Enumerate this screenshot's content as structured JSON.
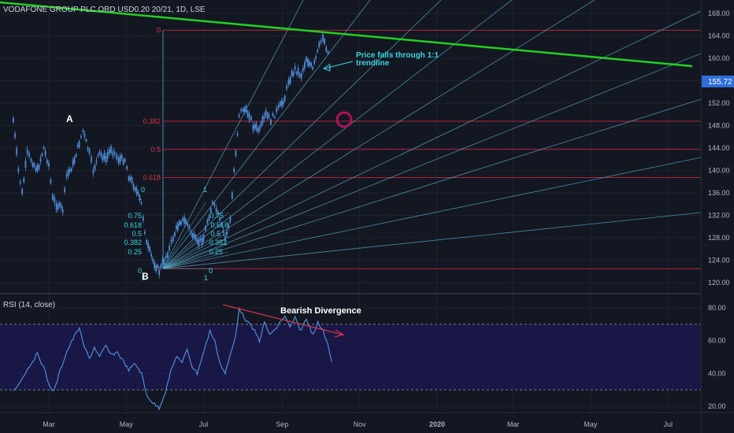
{
  "header": {
    "symbol": "VODAFONE GROUP PLC ORD USD0.20 20/21, 1D, LSE"
  },
  "colors": {
    "background": "#131722",
    "candle": "#4e8bd6",
    "green_trendline": "#22d022",
    "fib_lines": "#b2263c",
    "fib_label": "#d2354e",
    "gann_lines": "#5aa8c8",
    "gann_label": "#3ad4e0",
    "annotation": "#3ad4e0",
    "circle": "#b0125a",
    "rsi_line": "#4e8bd6",
    "rsi_band": "#1c1852",
    "divergence_arrow": "#d2354e",
    "price_badge": "#2f6ed8"
  },
  "annotations": {
    "point_a": "A",
    "point_b": "B",
    "trendline_note_1": "Price falls through 1:1",
    "trendline_note_2": "trendline",
    "divergence": "Bearish Divergence"
  },
  "price_axis": {
    "ticks": [
      "168.00",
      "164.00",
      "160.00",
      "156.00",
      "152.00",
      "148.00",
      "144.00",
      "140.00",
      "136.00",
      "132.00",
      "128.00",
      "124.00",
      "120.00"
    ],
    "current_price": "155.72"
  },
  "rsi_panel": {
    "title": "RSI (14, close)",
    "ticks": [
      "80.00",
      "60.00",
      "40.00",
      "20.00"
    ]
  },
  "time_axis": {
    "labels": [
      "Mar",
      "May",
      "Jul",
      "Sep",
      "Nov",
      "2020",
      "Mar",
      "May",
      "Jul"
    ]
  },
  "chart_data": {
    "type": "line",
    "title": "VODAFONE GROUP PLC ORD USD0.20 20/21, 1D, LSE",
    "price_range": [
      119,
      170
    ],
    "rsi_range": [
      15,
      88
    ],
    "price_path": [
      [
        "2019-02-01",
        149
      ],
      [
        "2019-02-05",
        140
      ],
      [
        "2019-02-08",
        136
      ],
      [
        "2019-02-12",
        143
      ],
      [
        "2019-02-15",
        142
      ],
      [
        "2019-02-20",
        140
      ],
      [
        "2019-02-25",
        144
      ],
      [
        "2019-03-01",
        141
      ],
      [
        "2019-03-04",
        135
      ],
      [
        "2019-03-07",
        134
      ],
      [
        "2019-03-12",
        133
      ],
      [
        "2019-03-15",
        139
      ],
      [
        "2019-03-20",
        141
      ],
      [
        "2019-03-25",
        145
      ],
      [
        "2019-03-28",
        147
      ],
      [
        "2019-04-02",
        143
      ],
      [
        "2019-04-05",
        140
      ],
      [
        "2019-04-10",
        143
      ],
      [
        "2019-04-15",
        142
      ],
      [
        "2019-04-19",
        144
      ],
      [
        "2019-04-25",
        142
      ],
      [
        "2019-04-30",
        142
      ],
      [
        "2019-05-03",
        139
      ],
      [
        "2019-05-08",
        137
      ],
      [
        "2019-05-13",
        134
      ],
      [
        "2019-05-17",
        127
      ],
      [
        "2019-05-22",
        124
      ],
      [
        "2019-05-27",
        122
      ],
      [
        "2019-05-31",
        124
      ],
      [
        "2019-06-04",
        126
      ],
      [
        "2019-06-07",
        128
      ],
      [
        "2019-06-12",
        131
      ],
      [
        "2019-06-17",
        131
      ],
      [
        "2019-06-21",
        129
      ],
      [
        "2019-06-26",
        127
      ],
      [
        "2019-07-01",
        128
      ],
      [
        "2019-07-04",
        131
      ],
      [
        "2019-07-08",
        134
      ],
      [
        "2019-07-11",
        133
      ],
      [
        "2019-07-15",
        130
      ],
      [
        "2019-07-18",
        128
      ],
      [
        "2019-07-22",
        131
      ],
      [
        "2019-07-25",
        140
      ],
      [
        "2019-07-29",
        150
      ],
      [
        "2019-08-01",
        151
      ],
      [
        "2019-08-06",
        150
      ],
      [
        "2019-08-09",
        148
      ],
      [
        "2019-08-14",
        147
      ],
      [
        "2019-08-19",
        150
      ],
      [
        "2019-08-23",
        149
      ],
      [
        "2019-08-29",
        151
      ],
      [
        "2019-09-03",
        153
      ],
      [
        "2019-09-06",
        156
      ],
      [
        "2019-09-11",
        158
      ],
      [
        "2019-09-16",
        157
      ],
      [
        "2019-09-20",
        160
      ],
      [
        "2019-09-25",
        158
      ],
      [
        "2019-09-30",
        162
      ],
      [
        "2019-10-03",
        164
      ],
      [
        "2019-10-07",
        161
      ],
      [
        "2019-10-10",
        156
      ]
    ],
    "rsi_path": [
      [
        "2019-02-01",
        30
      ],
      [
        "2019-02-05",
        33
      ],
      [
        "2019-02-10",
        40
      ],
      [
        "2019-02-15",
        46
      ],
      [
        "2019-02-20",
        52
      ],
      [
        "2019-02-25",
        44
      ],
      [
        "2019-03-01",
        33
      ],
      [
        "2019-03-05",
        29
      ],
      [
        "2019-03-10",
        42
      ],
      [
        "2019-03-15",
        53
      ],
      [
        "2019-03-20",
        61
      ],
      [
        "2019-03-25",
        68
      ],
      [
        "2019-03-28",
        58
      ],
      [
        "2019-04-02",
        49
      ],
      [
        "2019-04-06",
        56
      ],
      [
        "2019-04-10",
        50
      ],
      [
        "2019-04-15",
        57
      ],
      [
        "2019-04-19",
        51
      ],
      [
        "2019-04-24",
        53
      ],
      [
        "2019-04-29",
        47
      ],
      [
        "2019-05-03",
        42
      ],
      [
        "2019-05-08",
        46
      ],
      [
        "2019-05-13",
        40
      ],
      [
        "2019-05-17",
        27
      ],
      [
        "2019-05-22",
        22
      ],
      [
        "2019-05-27",
        19
      ],
      [
        "2019-06-01",
        29
      ],
      [
        "2019-06-05",
        41
      ],
      [
        "2019-06-10",
        51
      ],
      [
        "2019-06-14",
        46
      ],
      [
        "2019-06-18",
        55
      ],
      [
        "2019-06-22",
        44
      ],
      [
        "2019-06-26",
        40
      ],
      [
        "2019-06-29",
        48
      ],
      [
        "2019-07-03",
        58
      ],
      [
        "2019-07-06",
        66
      ],
      [
        "2019-07-10",
        59
      ],
      [
        "2019-07-14",
        46
      ],
      [
        "2019-07-18",
        40
      ],
      [
        "2019-07-22",
        51
      ],
      [
        "2019-07-26",
        62
      ],
      [
        "2019-07-29",
        80
      ],
      [
        "2019-08-02",
        74
      ],
      [
        "2019-08-06",
        70
      ],
      [
        "2019-08-10",
        66
      ],
      [
        "2019-08-14",
        60
      ],
      [
        "2019-08-18",
        71
      ],
      [
        "2019-08-22",
        64
      ],
      [
        "2019-08-26",
        66
      ],
      [
        "2019-08-30",
        71
      ],
      [
        "2019-09-03",
        75
      ],
      [
        "2019-09-07",
        68
      ],
      [
        "2019-09-11",
        74
      ],
      [
        "2019-09-15",
        66
      ],
      [
        "2019-09-20",
        73
      ],
      [
        "2019-09-25",
        64
      ],
      [
        "2019-09-29",
        71
      ],
      [
        "2019-10-03",
        66
      ],
      [
        "2019-10-07",
        58
      ],
      [
        "2019-10-10",
        47
      ]
    ],
    "rsi_levels": [
      70,
      30
    ],
    "fib_retracement": {
      "high": 165,
      "low": 122.5,
      "levels": [
        {
          "ratio": 0,
          "label": "0"
        },
        {
          "ratio": 0.382,
          "label": "0.382"
        },
        {
          "ratio": 0.5,
          "label": "0.5"
        },
        {
          "ratio": 0.618,
          "label": "0.618"
        },
        {
          "ratio": 1,
          "label": "1"
        }
      ]
    },
    "green_trendline": {
      "start": [
        "2019-01-20",
        170
      ],
      "end": [
        "2020-07-20",
        158.6
      ]
    },
    "gann_fan_1": {
      "origin": [
        "2019-05-30",
        122.5
      ],
      "angle_points": [
        [
          "2019-07-10",
          135
        ],
        [
          "2019-07-25",
          135
        ]
      ],
      "labels": [
        "0",
        "1",
        "0.75",
        "0.618",
        "0.5",
        "0.382",
        "0.25",
        "0",
        "1"
      ]
    },
    "gann_fan_2": {
      "origin": [
        "2019-05-30",
        122.5
      ],
      "labels": [
        "1",
        "0.75",
        "0.618",
        "0.5",
        "0.382",
        "0.25",
        "0",
        "1"
      ]
    },
    "circle_marker": [
      "2019-10-27",
      148.6
    ],
    "x_axis_ticks": [
      "2019-03-01",
      "2019-05-01",
      "2019-07-01",
      "2019-09-01",
      "2019-11-01",
      "2020-01-01",
      "2020-03-01",
      "2020-05-01",
      "2020-07-01"
    ]
  }
}
